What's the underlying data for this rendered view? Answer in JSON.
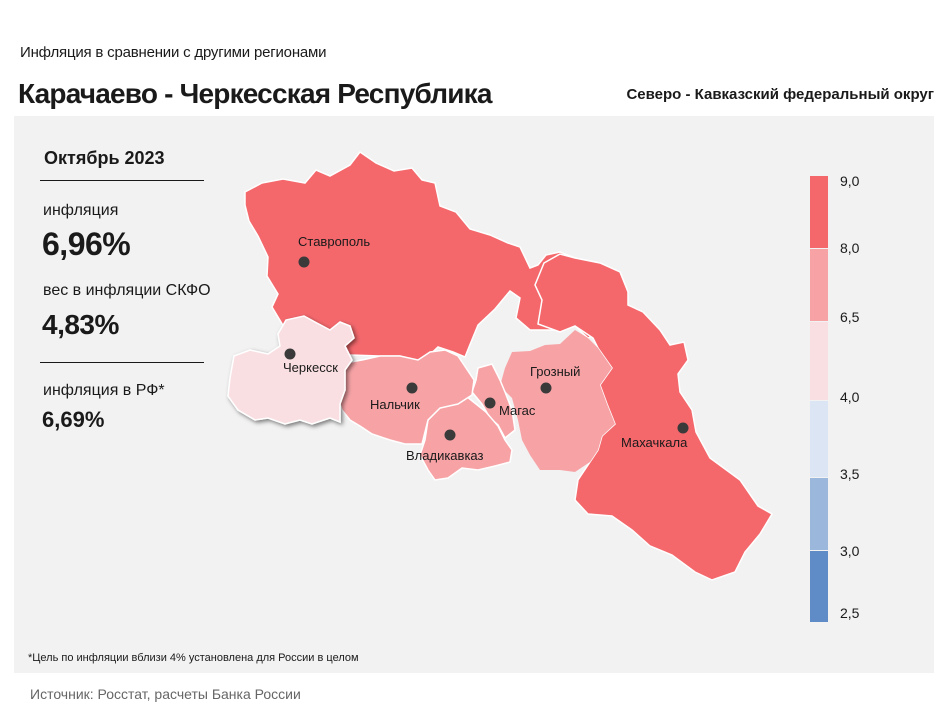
{
  "header": {
    "subtitle": "Инфляция в сравнении с другими регионами",
    "title": "Карачаево - Черкесская Республика",
    "district": "Северо - Кавказский федеральный округ"
  },
  "stats": {
    "month": "Октябрь 2023",
    "inflation_label": "инфляция",
    "inflation_value": "6,96%",
    "weight_label": "вес в инфляции СКФО",
    "weight_value": "4,83%",
    "rf_label": "инфляция в РФ*",
    "rf_value": "6,69%"
  },
  "map": {
    "regions": [
      {
        "name": "Ставропольский край",
        "city": "Ставрополь",
        "color": "#f4686c"
      },
      {
        "name": "Дагестан",
        "city": "Махачкала",
        "color": "#f4686c"
      },
      {
        "name": "Карачаево-Черкесская Республика",
        "city": "Черкесск",
        "color": "#f7a3a6",
        "highlighted": true
      },
      {
        "name": "Кабардино-Балкарская Республика",
        "city": "Нальчик",
        "color": "#f7a3a6"
      },
      {
        "name": "Северная Осетия",
        "city": "Владикавказ",
        "color": "#f7a3a6"
      },
      {
        "name": "Ингушетия",
        "city": "Магас",
        "color": "#f7a3a6"
      },
      {
        "name": "Чечня",
        "city": "Грозный",
        "color": "#f9dfe2"
      }
    ]
  },
  "legend": {
    "ticks": [
      "9,0",
      "8,0",
      "6,5",
      "4,0",
      "3,5",
      "3,0",
      "2,5"
    ],
    "colors": [
      "#f4686c",
      "#f7a3a6",
      "#f9dfe2",
      "#dce5f3",
      "#9cb7dc",
      "#5f8cc6"
    ]
  },
  "footnote": "*Цель по инфляции вблизи 4% установлена для России в целом",
  "source": "Источник: Росстат, расчеты Банка России"
}
